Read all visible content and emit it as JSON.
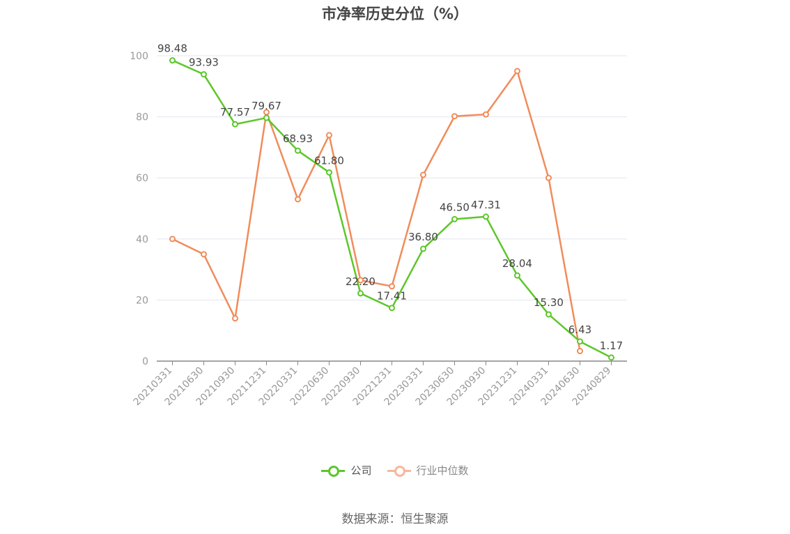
{
  "title": "市净率历史分位（%）",
  "source": "数据来源：恒生聚源",
  "colors": {
    "company": "#5cc72a",
    "industry": "#f08c5a",
    "industry_legend": "#f7b79a"
  },
  "chart_data": {
    "type": "line",
    "title": "市净率历史分位（%）",
    "categories": [
      "20210331",
      "20210630",
      "20210930",
      "20211231",
      "20220331",
      "20220630",
      "20220930",
      "20221231",
      "20230331",
      "20230630",
      "20230930",
      "20231231",
      "20240331",
      "20240630",
      "20240829"
    ],
    "ylim": [
      0,
      100
    ],
    "yticks": [
      0,
      20,
      40,
      60,
      80,
      100
    ],
    "grid": true,
    "legend_position": "bottom",
    "series": [
      {
        "name": "公司",
        "color": "#5cc72a",
        "values": [
          98.48,
          93.93,
          77.57,
          79.67,
          68.93,
          61.8,
          22.2,
          17.41,
          36.8,
          46.5,
          47.31,
          28.04,
          15.3,
          6.43,
          1.17
        ],
        "labels": [
          "98.48",
          "93.93",
          "77.57",
          "79.67",
          "68.93",
          "61.80",
          "22.20",
          "17.41",
          "36.80",
          "46.50",
          "47.31",
          "28.04",
          "15.30",
          "6.43",
          "1.17"
        ]
      },
      {
        "name": "行业中位数",
        "color": "#f08c5a",
        "values": [
          40,
          35,
          14,
          81.5,
          53,
          74,
          26.5,
          24.5,
          61,
          80.2,
          80.8,
          95,
          60,
          3.3,
          null
        ]
      }
    ]
  }
}
